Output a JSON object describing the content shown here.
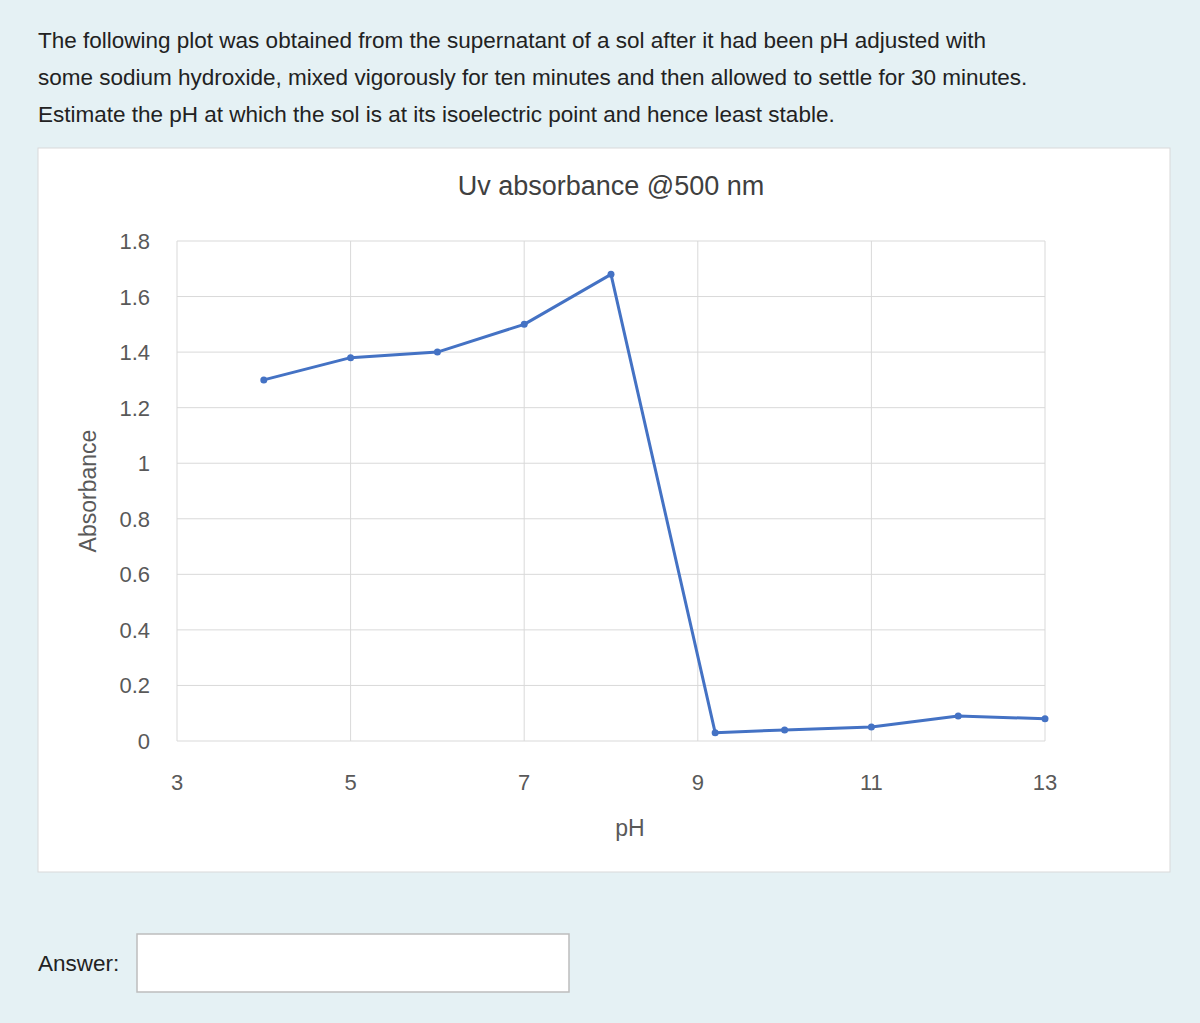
{
  "question_lines": [
    "The following plot was obtained from the supernatant of a sol after it had been pH adjusted with",
    "some sodium hydroxide, mixed vigorously for ten minutes and then allowed to settle for 30 minutes.",
    "Estimate the pH at which the sol is at its isoelectric point and hence least stable."
  ],
  "answer_label": "Answer:",
  "chart_data": {
    "type": "line",
    "title": "Uv absorbance @500 nm",
    "x_label": "pH",
    "y_label": "Absorbance",
    "x": [
      4,
      5,
      6,
      7,
      8,
      9.2,
      10,
      11,
      12,
      13
    ],
    "values": [
      1.3,
      1.38,
      1.4,
      1.5,
      1.68,
      0.03,
      0.04,
      0.05,
      0.09,
      0.08
    ],
    "color": "#4472c4",
    "marker": "circle",
    "xlim": [
      3,
      13
    ],
    "xticks": [
      3,
      5,
      7,
      9,
      11,
      13
    ],
    "ylim": [
      0,
      1.8
    ],
    "yticks": [
      0,
      0.2,
      0.4,
      0.6,
      0.8,
      1,
      1.2,
      1.4,
      1.6,
      1.8
    ],
    "grid": true
  }
}
